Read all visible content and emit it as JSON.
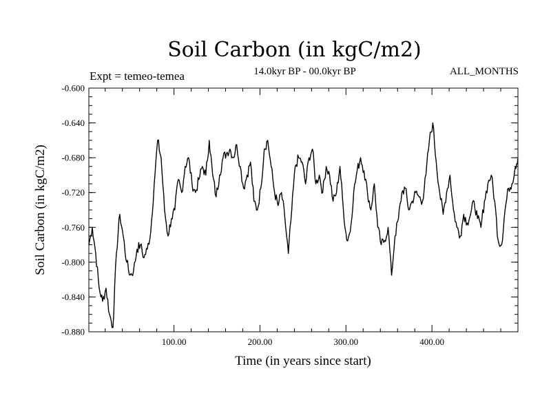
{
  "chart_data": {
    "type": "line",
    "title": "Soil Carbon (in kgC/m2)",
    "subtitle": "14.0kyr BP - 00.0kyr BP",
    "experiment": "Expt = temeo-temea",
    "period": "ALL_MONTHS",
    "xlabel": "Time (in years since start)",
    "ylabel": "Soil Carbon (in kgC/m2)",
    "xlim": [
      1,
      500
    ],
    "ylim": [
      -0.88,
      -0.6
    ],
    "x_ticks": [
      100,
      200,
      300,
      400
    ],
    "x_tick_labels": [
      "100.00",
      "200.00",
      "300.00",
      "400.00"
    ],
    "y_ticks": [
      -0.6,
      -0.64,
      -0.68,
      -0.72,
      -0.76,
      -0.8,
      -0.84,
      -0.88
    ],
    "y_tick_labels": [
      "-0.600",
      "-0.640",
      "-0.680",
      "-0.720",
      "-0.760",
      "-0.800",
      "-0.840",
      "-0.880"
    ],
    "series": [
      {
        "name": "Soil Carbon",
        "color": "#000000",
        "x": [
          1,
          5,
          9,
          13,
          17,
          21,
          25,
          29,
          33,
          37,
          41,
          45,
          49,
          53,
          57,
          61,
          65,
          69,
          73,
          77,
          81,
          85,
          89,
          93,
          97,
          101,
          105,
          109,
          113,
          117,
          121,
          125,
          129,
          133,
          137,
          141,
          145,
          149,
          153,
          157,
          161,
          165,
          169,
          173,
          177,
          181,
          185,
          189,
          193,
          197,
          201,
          205,
          209,
          213,
          217,
          221,
          225,
          229,
          233,
          237,
          241,
          245,
          249,
          253,
          257,
          261,
          265,
          269,
          273,
          277,
          281,
          285,
          289,
          293,
          297,
          301,
          305,
          309,
          313,
          317,
          321,
          325,
          329,
          333,
          337,
          341,
          345,
          349,
          353,
          357,
          361,
          365,
          369,
          373,
          377,
          381,
          385,
          389,
          393,
          397,
          401,
          405,
          409,
          413,
          417,
          421,
          425,
          429,
          433,
          437,
          441,
          445,
          449,
          453,
          457,
          461,
          465,
          469,
          473,
          477,
          481,
          485,
          489,
          493,
          497,
          500
        ],
        "values": [
          -0.78,
          -0.76,
          -0.79,
          -0.83,
          -0.845,
          -0.83,
          -0.86,
          -0.875,
          -0.79,
          -0.745,
          -0.77,
          -0.8,
          -0.815,
          -0.81,
          -0.785,
          -0.78,
          -0.795,
          -0.785,
          -0.765,
          -0.71,
          -0.66,
          -0.68,
          -0.74,
          -0.77,
          -0.75,
          -0.74,
          -0.705,
          -0.72,
          -0.69,
          -0.68,
          -0.71,
          -0.72,
          -0.705,
          -0.69,
          -0.7,
          -0.66,
          -0.7,
          -0.725,
          -0.7,
          -0.68,
          -0.675,
          -0.67,
          -0.68,
          -0.665,
          -0.69,
          -0.715,
          -0.7,
          -0.685,
          -0.73,
          -0.74,
          -0.715,
          -0.67,
          -0.66,
          -0.69,
          -0.72,
          -0.735,
          -0.72,
          -0.75,
          -0.79,
          -0.74,
          -0.69,
          -0.68,
          -0.685,
          -0.71,
          -0.68,
          -0.67,
          -0.71,
          -0.7,
          -0.72,
          -0.69,
          -0.7,
          -0.73,
          -0.72,
          -0.69,
          -0.74,
          -0.775,
          -0.765,
          -0.72,
          -0.695,
          -0.68,
          -0.695,
          -0.72,
          -0.74,
          -0.71,
          -0.76,
          -0.78,
          -0.775,
          -0.76,
          -0.815,
          -0.77,
          -0.75,
          -0.72,
          -0.715,
          -0.74,
          -0.73,
          -0.72,
          -0.725,
          -0.73,
          -0.7,
          -0.66,
          -0.64,
          -0.685,
          -0.72,
          -0.745,
          -0.72,
          -0.7,
          -0.74,
          -0.76,
          -0.77,
          -0.745,
          -0.755,
          -0.745,
          -0.73,
          -0.75,
          -0.76,
          -0.73,
          -0.71,
          -0.7,
          -0.73,
          -0.775,
          -0.78,
          -0.74,
          -0.715,
          -0.71,
          -0.69,
          -0.68
        ]
      }
    ]
  }
}
